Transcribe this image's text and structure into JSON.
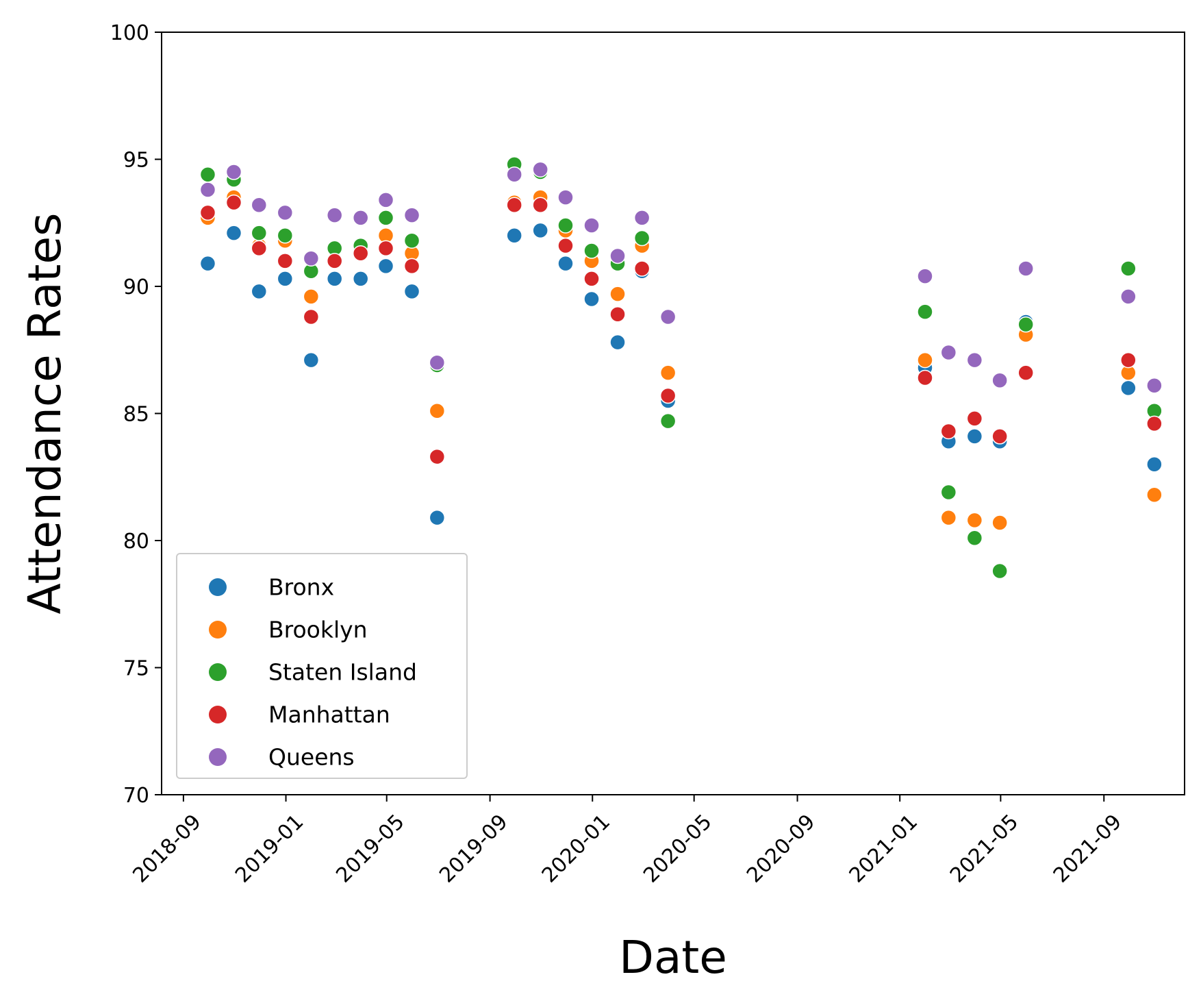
{
  "chart_data": {
    "type": "scatter",
    "title": "",
    "xlabel": "Date",
    "ylabel": "Attendance Rates",
    "ylim": [
      70,
      100
    ],
    "yticks": [
      70,
      75,
      80,
      85,
      90,
      95,
      100
    ],
    "xlim": [
      "2018-08-06",
      "2021-12-06"
    ],
    "xticks": [
      "2018-09",
      "2019-01",
      "2019-05",
      "2019-09",
      "2020-01",
      "2020-05",
      "2020-09",
      "2021-01",
      "2021-05",
      "2021-09"
    ],
    "grid": false,
    "legend_position": "lower-left",
    "x": [
      "2018-09-30",
      "2018-10-31",
      "2018-11-30",
      "2018-12-31",
      "2019-01-31",
      "2019-02-28",
      "2019-03-31",
      "2019-04-30",
      "2019-05-31",
      "2019-06-30",
      "2019-09-30",
      "2019-10-31",
      "2019-11-30",
      "2019-12-31",
      "2020-01-31",
      "2020-02-29",
      "2020-03-31",
      "2021-01-31",
      "2021-02-28",
      "2021-03-31",
      "2021-04-30",
      "2021-05-31",
      "2021-09-30",
      "2021-10-31"
    ],
    "series": [
      {
        "name": "Bronx",
        "color": "#1f77b4",
        "values": [
          90.9,
          92.1,
          89.8,
          90.3,
          87.1,
          90.3,
          90.3,
          90.8,
          89.8,
          80.9,
          92.0,
          92.2,
          90.9,
          89.5,
          87.8,
          90.6,
          85.5,
          86.8,
          83.9,
          84.1,
          83.9,
          88.6,
          86.0,
          83.0
        ]
      },
      {
        "name": "Brooklyn",
        "color": "#ff7f0e",
        "values": [
          92.7,
          93.5,
          91.6,
          91.8,
          89.6,
          91.0,
          91.3,
          92.0,
          91.3,
          85.1,
          93.3,
          93.5,
          92.2,
          91.0,
          89.7,
          91.6,
          86.6,
          87.1,
          80.9,
          80.8,
          80.7,
          88.1,
          86.6,
          81.8
        ]
      },
      {
        "name": "Staten Island",
        "color": "#2ca02c",
        "values": [
          94.4,
          94.2,
          92.1,
          92.0,
          90.6,
          91.5,
          91.6,
          92.7,
          91.8,
          86.9,
          94.8,
          94.5,
          92.4,
          91.4,
          90.9,
          91.9,
          84.7,
          89.0,
          81.9,
          80.1,
          78.8,
          88.5,
          90.7,
          85.1
        ]
      },
      {
        "name": "Manhattan",
        "color": "#d62728",
        "values": [
          92.9,
          93.3,
          91.5,
          91.0,
          88.8,
          91.0,
          91.3,
          91.5,
          90.8,
          83.3,
          93.2,
          93.2,
          91.6,
          90.3,
          88.9,
          90.7,
          85.7,
          86.4,
          84.3,
          84.8,
          84.1,
          86.6,
          87.1,
          84.6
        ]
      },
      {
        "name": "Queens",
        "color": "#9467bd",
        "values": [
          93.8,
          94.5,
          93.2,
          92.9,
          91.1,
          92.8,
          92.7,
          93.4,
          92.8,
          87.0,
          94.4,
          94.6,
          93.5,
          92.4,
          91.2,
          92.7,
          88.8,
          90.4,
          87.4,
          87.1,
          86.3,
          90.7,
          89.6,
          86.1
        ]
      }
    ]
  }
}
